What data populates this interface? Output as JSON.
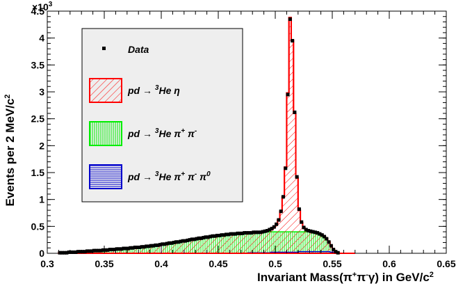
{
  "chart_data": {
    "type": "histogram",
    "xlabel_main": "Invariant Mass(",
    "xlabel_pi": "π",
    "xlabel_plus": "+",
    "xlabel_pi2": "π",
    "xlabel_minus": "-",
    "xlabel_gamma": "γ)   in GeV/c",
    "xlabel_sq": "2",
    "ylabel": "Events per 2 MeV/c",
    "ylabel_sq": "2",
    "y_multiplier_base": "×10",
    "y_multiplier_exp": "3",
    "xlim": [
      0.3,
      0.65
    ],
    "ylim": [
      0,
      4.5
    ],
    "x_ticks": [
      "0.3",
      "0.35",
      "0.4",
      "0.45",
      "0.5",
      "0.55",
      "0.6",
      "0.65"
    ],
    "y_ticks": [
      "0",
      "0.5",
      "1",
      "1.5",
      "2",
      "2.5",
      "3",
      "3.5",
      "4",
      "4.5"
    ],
    "legend": {
      "data": "Data",
      "eta": {
        "pre": "pd → ",
        "sup": "3",
        "post": "He η"
      },
      "pipi": {
        "pre": "pd → ",
        "sup": "3",
        "post": "He π",
        "s1": "+",
        "mid": " π",
        "s2": "-"
      },
      "pipipi": {
        "pre": "pd → ",
        "sup": "3",
        "post": "He π",
        "s1": "+",
        "mid": " π",
        "s2": "-",
        "mid2": " π",
        "s3": "0"
      }
    },
    "colors": {
      "data": "#000000",
      "eta": "#ff0000",
      "pipi": "#00ee00",
      "pipipi": "#0000cc",
      "legend_bg": "#eeeeee"
    },
    "bin_width": 0.002,
    "bin_start": 0.31,
    "series": [
      {
        "name": "Data",
        "values": [
          0.01,
          0.01,
          0.01,
          0.01,
          0.02,
          0.02,
          0.02,
          0.02,
          0.03,
          0.03,
          0.03,
          0.03,
          0.04,
          0.04,
          0.04,
          0.05,
          0.05,
          0.05,
          0.05,
          0.06,
          0.06,
          0.06,
          0.07,
          0.07,
          0.07,
          0.08,
          0.08,
          0.08,
          0.09,
          0.09,
          0.09,
          0.1,
          0.1,
          0.11,
          0.11,
          0.11,
          0.12,
          0.12,
          0.13,
          0.13,
          0.14,
          0.14,
          0.15,
          0.15,
          0.16,
          0.17,
          0.17,
          0.18,
          0.19,
          0.19,
          0.2,
          0.21,
          0.21,
          0.22,
          0.23,
          0.23,
          0.24,
          0.25,
          0.26,
          0.26,
          0.27,
          0.28,
          0.28,
          0.29,
          0.3,
          0.3,
          0.31,
          0.32,
          0.32,
          0.33,
          0.33,
          0.34,
          0.34,
          0.35,
          0.35,
          0.36,
          0.36,
          0.36,
          0.37,
          0.37,
          0.37,
          0.38,
          0.38,
          0.38,
          0.38,
          0.39,
          0.39,
          0.39,
          0.39,
          0.4,
          0.41,
          0.42,
          0.44,
          0.46,
          0.49,
          0.54,
          0.62,
          0.78,
          1.05,
          1.58,
          2.95,
          4.35,
          3.95,
          2.62,
          1.42,
          0.82,
          0.58,
          0.48,
          0.44,
          0.42,
          0.41,
          0.4,
          0.39,
          0.38,
          0.36,
          0.34,
          0.31,
          0.27,
          0.21,
          0.14,
          0.07,
          0.03,
          0.01,
          0.0,
          0.0,
          0.0,
          0.0,
          0.0,
          0.0,
          0.0
        ]
      },
      {
        "name": "pd → 3He η",
        "values": [
          0.01,
          0.01,
          0.01,
          0.01,
          0.02,
          0.02,
          0.02,
          0.02,
          0.03,
          0.03,
          0.03,
          0.03,
          0.04,
          0.04,
          0.04,
          0.05,
          0.05,
          0.05,
          0.05,
          0.06,
          0.06,
          0.06,
          0.07,
          0.07,
          0.07,
          0.08,
          0.08,
          0.08,
          0.09,
          0.09,
          0.09,
          0.1,
          0.1,
          0.11,
          0.11,
          0.11,
          0.12,
          0.12,
          0.13,
          0.13,
          0.14,
          0.14,
          0.15,
          0.15,
          0.16,
          0.17,
          0.17,
          0.18,
          0.19,
          0.19,
          0.2,
          0.21,
          0.21,
          0.22,
          0.23,
          0.23,
          0.24,
          0.25,
          0.26,
          0.26,
          0.27,
          0.28,
          0.28,
          0.29,
          0.3,
          0.3,
          0.31,
          0.32,
          0.32,
          0.33,
          0.33,
          0.34,
          0.34,
          0.35,
          0.35,
          0.36,
          0.36,
          0.36,
          0.37,
          0.37,
          0.37,
          0.38,
          0.38,
          0.38,
          0.38,
          0.39,
          0.39,
          0.39,
          0.39,
          0.4,
          0.41,
          0.42,
          0.44,
          0.46,
          0.49,
          0.54,
          0.62,
          0.78,
          1.05,
          1.6,
          2.98,
          4.38,
          3.96,
          2.6,
          1.4,
          0.8,
          0.57,
          0.48,
          0.44,
          0.42,
          0.41,
          0.4,
          0.39,
          0.38,
          0.36,
          0.34,
          0.31,
          0.27,
          0.21,
          0.14,
          0.07,
          0.03,
          0.01,
          0.0,
          0.0,
          0.0,
          0.0,
          0.0,
          0.0,
          0.0
        ]
      },
      {
        "name": "pd → 3He π+ π-",
        "values": [
          0.01,
          0.01,
          0.01,
          0.01,
          0.02,
          0.02,
          0.02,
          0.02,
          0.03,
          0.03,
          0.03,
          0.03,
          0.04,
          0.04,
          0.04,
          0.05,
          0.05,
          0.05,
          0.05,
          0.06,
          0.06,
          0.06,
          0.07,
          0.07,
          0.07,
          0.08,
          0.08,
          0.08,
          0.09,
          0.09,
          0.09,
          0.1,
          0.1,
          0.11,
          0.11,
          0.11,
          0.12,
          0.12,
          0.13,
          0.13,
          0.14,
          0.14,
          0.15,
          0.15,
          0.16,
          0.17,
          0.17,
          0.18,
          0.19,
          0.19,
          0.2,
          0.21,
          0.21,
          0.22,
          0.23,
          0.23,
          0.24,
          0.25,
          0.26,
          0.26,
          0.27,
          0.28,
          0.28,
          0.29,
          0.3,
          0.3,
          0.31,
          0.32,
          0.32,
          0.33,
          0.33,
          0.34,
          0.34,
          0.35,
          0.35,
          0.36,
          0.36,
          0.36,
          0.37,
          0.37,
          0.37,
          0.38,
          0.38,
          0.38,
          0.38,
          0.39,
          0.39,
          0.39,
          0.39,
          0.4,
          0.4,
          0.4,
          0.4,
          0.4,
          0.4,
          0.4,
          0.4,
          0.4,
          0.4,
          0.4,
          0.4,
          0.4,
          0.4,
          0.4,
          0.4,
          0.4,
          0.4,
          0.4,
          0.4,
          0.4,
          0.39,
          0.39,
          0.38,
          0.37,
          0.35,
          0.33,
          0.3,
          0.26,
          0.2,
          0.13,
          0.07,
          0.03,
          0.01,
          0.0,
          0.0,
          0.0,
          0.0,
          0.0,
          0.0,
          0.0
        ]
      },
      {
        "name": "pd → 3He π+ π- π0",
        "values": [
          0.0,
          0.0,
          0.0,
          0.0,
          0.0,
          0.0,
          0.0,
          0.0,
          0.0,
          0.0,
          0.0,
          0.0,
          0.0,
          0.0,
          0.0,
          0.0,
          0.0,
          0.0,
          0.0,
          0.0,
          0.0,
          0.0,
          0.0,
          0.0,
          0.0,
          0.0,
          0.0,
          0.0,
          0.0,
          0.0,
          0.0,
          0.0,
          0.0,
          0.0,
          0.0,
          0.0,
          0.0,
          0.0,
          0.0,
          0.0,
          0.0,
          0.0,
          0.0,
          0.0,
          0.0,
          0.0,
          0.0,
          0.0,
          0.0,
          0.0,
          0.0,
          0.0,
          0.0,
          0.0,
          0.0,
          0.0,
          0.0,
          0.0,
          0.0,
          0.0,
          0.0,
          0.0,
          0.0,
          0.0,
          0.0,
          0.0,
          0.0,
          0.0,
          0.0,
          0.0,
          0.0,
          0.0,
          0.0,
          0.0,
          0.0,
          0.0,
          0.0,
          0.0,
          0.0,
          0.0,
          0.0,
          0.0,
          0.0,
          0.01,
          0.01,
          0.01,
          0.01,
          0.01,
          0.01,
          0.01,
          0.01,
          0.01,
          0.01,
          0.02,
          0.02,
          0.02,
          0.02,
          0.02,
          0.02,
          0.02,
          0.02,
          0.02,
          0.02,
          0.02,
          0.02,
          0.03,
          0.03,
          0.03,
          0.03,
          0.03,
          0.03,
          0.03,
          0.03,
          0.03,
          0.03,
          0.03,
          0.03,
          0.03,
          0.03,
          0.02,
          0.02,
          0.01,
          0.01,
          0.0,
          0.0,
          0.0,
          0.0,
          0.0,
          0.0,
          0.0
        ]
      }
    ]
  }
}
